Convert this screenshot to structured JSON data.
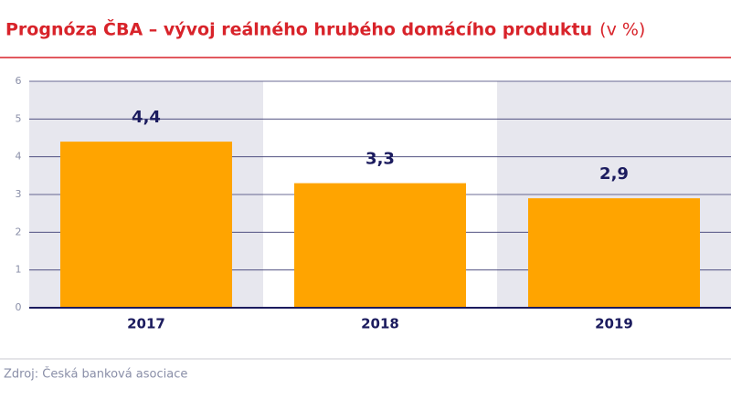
{
  "chart_data": {
    "type": "bar",
    "title": "Prognóza ČBA – vývoj reálného hrubého domácího produktu",
    "unit": "(v %)",
    "categories": [
      "2017",
      "2018",
      "2019"
    ],
    "values": [
      4.4,
      3.3,
      2.9
    ],
    "value_labels": [
      "4,4",
      "3,3",
      "2,9"
    ],
    "color": "#ffa400",
    "ylim": [
      0,
      6
    ],
    "yticks": [
      0,
      1,
      2,
      3,
      4,
      5,
      6
    ],
    "grid": true,
    "source": "Zdroj: Česká banková asociace"
  }
}
